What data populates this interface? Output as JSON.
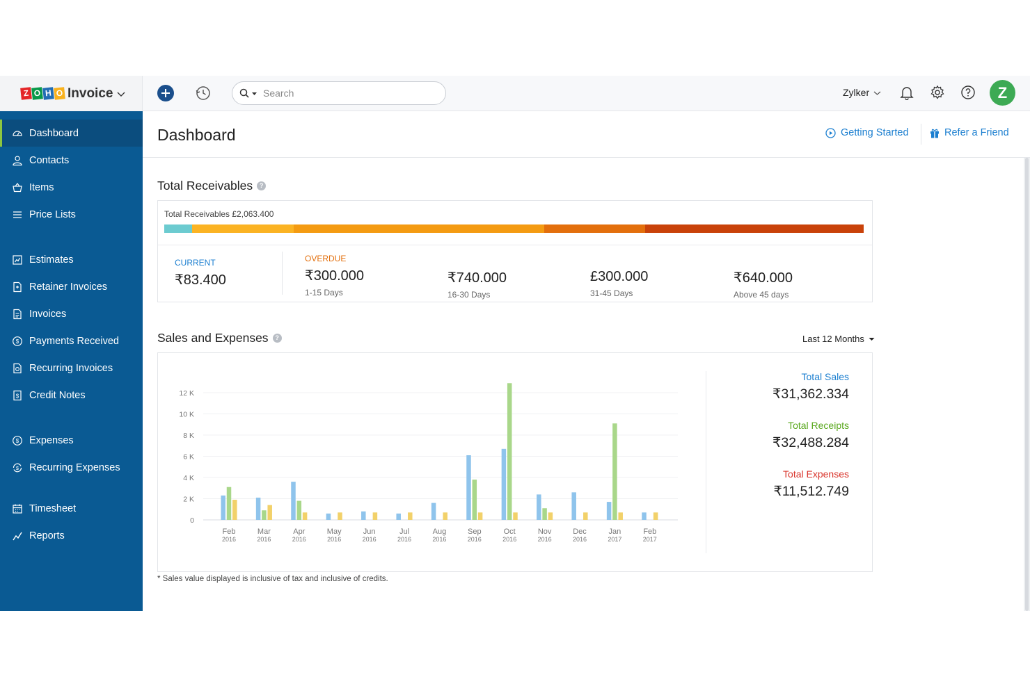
{
  "app": {
    "logo_letters": [
      "Z",
      "O",
      "H",
      "O"
    ],
    "logo_colors": [
      "#e42527",
      "#089949",
      "#226db4",
      "#f9b21d"
    ],
    "name": "Invoice"
  },
  "topbar": {
    "search_placeholder": "Search",
    "org_name": "Zylker",
    "avatar_letter": "Z"
  },
  "sidebar": {
    "groups": [
      [
        {
          "label": "Dashboard",
          "icon": "dashboard-icon",
          "active": true
        },
        {
          "label": "Contacts",
          "icon": "user-icon"
        },
        {
          "label": "Items",
          "icon": "basket-icon"
        },
        {
          "label": "Price Lists",
          "icon": "list-icon"
        }
      ],
      [
        {
          "label": "Estimates",
          "icon": "estimate-icon"
        },
        {
          "label": "Retainer Invoices",
          "icon": "retainer-icon"
        },
        {
          "label": "Invoices",
          "icon": "invoice-icon"
        },
        {
          "label": "Payments Received",
          "icon": "payment-icon"
        },
        {
          "label": "Recurring Invoices",
          "icon": "recurring-invoice-icon"
        },
        {
          "label": "Credit Notes",
          "icon": "credit-note-icon"
        }
      ],
      [
        {
          "label": "Expenses",
          "icon": "expense-icon"
        },
        {
          "label": "Recurring Expenses",
          "icon": "recurring-expense-icon"
        }
      ],
      [
        {
          "label": "Timesheet",
          "icon": "calendar-icon"
        },
        {
          "label": "Reports",
          "icon": "reports-icon"
        }
      ]
    ]
  },
  "header": {
    "title": "Dashboard",
    "getting_started": "Getting Started",
    "refer": "Refer a Friend"
  },
  "receivables": {
    "title": "Total Receivables",
    "total_text": "Total Receivables £2,063.400",
    "bar_segments": [
      {
        "share": 0.04,
        "color": "#6ccbd0"
      },
      {
        "share": 0.145,
        "color": "#fbb323"
      },
      {
        "share": 0.358,
        "color": "#f49b12"
      },
      {
        "share": 0.145,
        "color": "#e36f0c"
      },
      {
        "share": 0.312,
        "color": "#c9420a"
      }
    ],
    "current": {
      "label": "CURRENT",
      "amount": "₹83.400",
      "color": "#1c7fd0"
    },
    "overdue_label": "OVERDUE",
    "overdue_color": "#e36f0c",
    "buckets": [
      {
        "amount": "₹300.000",
        "range": "1-15 Days"
      },
      {
        "amount": "₹740.000",
        "range": "16-30 Days"
      },
      {
        "amount": "£300.000",
        "range": "31-45 Days"
      },
      {
        "amount": "₹640.000",
        "range": "Above 45 days"
      }
    ]
  },
  "sales": {
    "title": "Sales and Expenses",
    "period": "Last 12 Months",
    "totals": [
      {
        "label": "Total Sales",
        "amount": "₹31,362.334",
        "color": "#1c7fd0"
      },
      {
        "label": "Total Receipts",
        "amount": "₹32,488.284",
        "color": "#5aa81e"
      },
      {
        "label": "Total Expenses",
        "amount": "₹11,512.749",
        "color": "#d9342b"
      }
    ],
    "footnote": "* Sales value displayed is inclusive of tax and inclusive of credits."
  },
  "chart_data": {
    "type": "bar",
    "categories": [
      "Feb 2016",
      "Mar 2016",
      "Apr 2016",
      "May 2016",
      "Jun 2016",
      "Jul 2016",
      "Aug 2016",
      "Sep 2016",
      "Oct 2016",
      "Nov 2016",
      "Dec 2016",
      "Jan 2017",
      "Feb 2017"
    ],
    "month_labels": [
      "Feb",
      "Mar",
      "Apr",
      "May",
      "Jun",
      "Jul",
      "Aug",
      "Sep",
      "Oct",
      "Nov",
      "Dec",
      "Jan",
      "Feb"
    ],
    "year_labels": [
      "2016",
      "2016",
      "2016",
      "2016",
      "2016",
      "2016",
      "2016",
      "2016",
      "2016",
      "2016",
      "2016",
      "2017",
      "2017"
    ],
    "series": [
      {
        "key": "sales",
        "color": "#8fc4ec",
        "values": [
          2300,
          2100,
          3600,
          600,
          800,
          600,
          1600,
          6100,
          6700,
          2400,
          2600,
          1700,
          700
        ]
      },
      {
        "key": "receipts",
        "color": "#a9d78a",
        "values": [
          3100,
          900,
          1800,
          0,
          0,
          0,
          0,
          3800,
          12900,
          1100,
          0,
          9100,
          0
        ]
      },
      {
        "key": "expenses",
        "color": "#f2d16a",
        "values": [
          1900,
          1400,
          700,
          700,
          700,
          700,
          700,
          700,
          700,
          700,
          700,
          700,
          700
        ]
      }
    ],
    "yticks": [
      "0",
      "2 K",
      "4 K",
      "6 K",
      "8 K",
      "10 K",
      "12 K"
    ],
    "ylim": [
      0,
      12000
    ],
    "grid": true
  }
}
